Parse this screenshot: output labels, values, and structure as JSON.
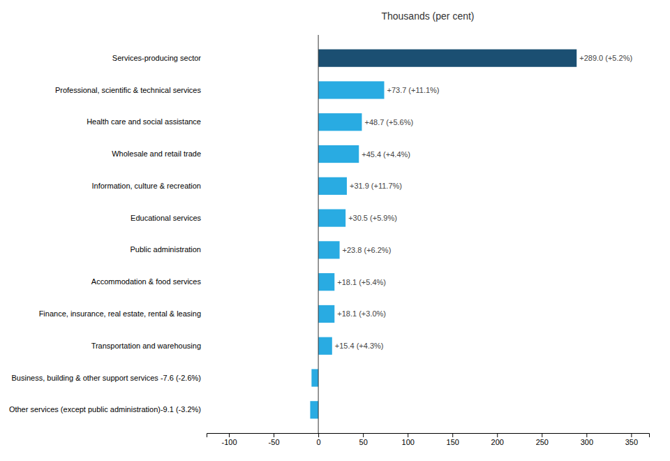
{
  "chart_data": {
    "type": "bar",
    "orientation": "horizontal",
    "title": "Thousands  (per cent)",
    "categories": [
      "Services-producing sector",
      "Professional, scientific & technical services",
      "Health care and social assistance",
      "Wholesale and retail trade",
      "Information, culture & recreation",
      "Educational services",
      "Public administration",
      "Accommodation & food services",
      "Finance, insurance, real estate, rental & leasing",
      "Transportation and warehousing",
      "Business, building & other support services  -7.6 (-2.6%)",
      "Other services (except public administration)-9.1 (-3.2%)"
    ],
    "values": [
      289.0,
      73.7,
      48.7,
      45.4,
      31.9,
      30.5,
      23.8,
      18.1,
      18.1,
      15.4,
      -7.6,
      -9.1
    ],
    "value_labels": [
      "+289.0 (+5.2%)",
      "+73.7 (+11.1%)",
      "+48.7 (+5.6%)",
      "+45.4 (+4.4%)",
      "+31.9 (+11.7%)",
      "+30.5 (+5.9%)",
      "+23.8 (+6.2%)",
      "+18.1 (+5.4%)",
      "+18.1 (+3.0%)",
      "+15.4 (+4.3%)",
      null,
      null
    ],
    "colors": [
      "#1b4f72",
      "#29abe2",
      "#29abe2",
      "#29abe2",
      "#29abe2",
      "#29abe2",
      "#29abe2",
      "#29abe2",
      "#29abe2",
      "#29abe2",
      "#29abe2",
      "#29abe2"
    ],
    "data_labels": true,
    "xlim": [
      -125,
      370
    ],
    "xticks": [
      -100,
      -50,
      0,
      50,
      100,
      150,
      200,
      250,
      300,
      350
    ]
  }
}
